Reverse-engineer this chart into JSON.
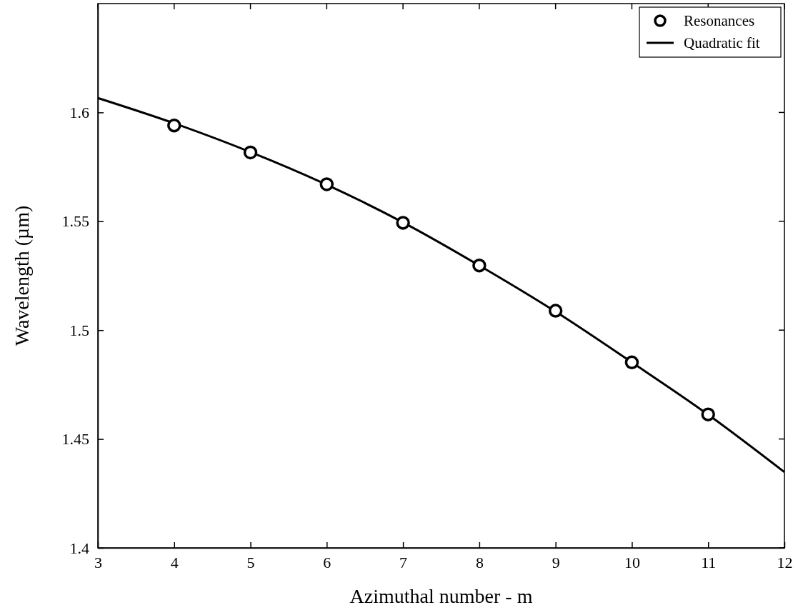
{
  "chart_data": {
    "type": "scatter",
    "xlabel": "Azimuthal number - m",
    "ylabel": "Wavelength (µm)",
    "xlim": [
      3,
      12
    ],
    "xticks": [
      3,
      4,
      5,
      6,
      7,
      8,
      9,
      10,
      11,
      12
    ],
    "ylim": [
      1.4,
      1.65
    ],
    "yticks": [
      1.4,
      1.45,
      1.5,
      1.55,
      1.6
    ],
    "grid": false,
    "legend": "top right",
    "series": [
      {
        "name": "Resonances",
        "marker": "circle",
        "color": "#000000",
        "x": [
          4,
          5,
          6,
          7,
          8,
          9,
          10,
          11
        ],
        "values": [
          1.594,
          1.5816,
          1.567,
          1.5493,
          1.5297,
          1.5089,
          1.4852,
          1.4613
        ]
      },
      {
        "name": "Quadratic fit",
        "type": "line",
        "marker": "none",
        "line_style": "solid",
        "color": "#000000",
        "x": [
          3,
          4,
          5,
          6,
          7,
          8,
          9,
          10,
          11,
          12
        ],
        "values": [
          1.6066,
          1.595,
          1.5818,
          1.5668,
          1.5495,
          1.5297,
          1.5085,
          1.4852,
          1.4612,
          1.4348
        ]
      }
    ]
  }
}
